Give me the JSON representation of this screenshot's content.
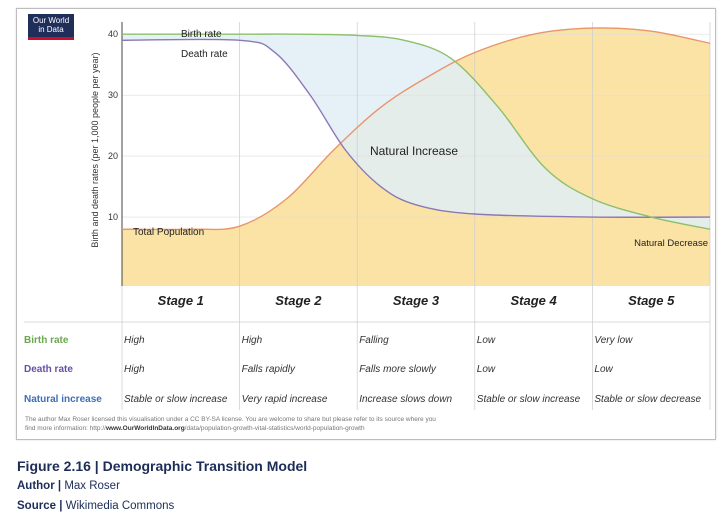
{
  "logo": {
    "line1": "Our World",
    "line2": "in Data"
  },
  "chart_data": {
    "type": "line",
    "ylabel": "Birth and death rates (per 1,000 people per year)",
    "yticks": [
      10,
      20,
      30,
      40
    ],
    "ylim": [
      0,
      42
    ],
    "xlim": [
      0,
      5
    ],
    "stages": [
      "Stage 1",
      "Stage 2",
      "Stage 3",
      "Stage 4",
      "Stage 5"
    ],
    "series": [
      {
        "name": "Birth rate",
        "color": "#8cc06b",
        "points": [
          [
            0,
            40
          ],
          [
            1,
            40
          ],
          [
            1.5,
            40
          ],
          [
            2,
            39.8
          ],
          [
            2.4,
            39
          ],
          [
            2.8,
            36
          ],
          [
            3.2,
            28
          ],
          [
            3.6,
            18
          ],
          [
            4,
            13
          ],
          [
            4.5,
            10
          ],
          [
            5,
            8
          ]
        ]
      },
      {
        "name": "Death rate",
        "color": "#8b78b5",
        "points": [
          [
            0,
            39
          ],
          [
            1,
            39
          ],
          [
            1.3,
            37
          ],
          [
            1.6,
            30
          ],
          [
            1.9,
            21
          ],
          [
            2.2,
            15
          ],
          [
            2.5,
            12
          ],
          [
            3,
            10.5
          ],
          [
            4,
            10
          ],
          [
            5,
            10
          ]
        ]
      },
      {
        "name": "Total Population",
        "color": "#e8956b",
        "points": [
          [
            0,
            8
          ],
          [
            0.6,
            8
          ],
          [
            1,
            8.5
          ],
          [
            1.4,
            13
          ],
          [
            1.8,
            21
          ],
          [
            2.2,
            28
          ],
          [
            2.6,
            33
          ],
          [
            3,
            37
          ],
          [
            3.5,
            40
          ],
          [
            4,
            41
          ],
          [
            4.5,
            40.5
          ],
          [
            5,
            38.5
          ]
        ]
      }
    ],
    "annotations": [
      "Natural Increase",
      "Natural Decrease"
    ],
    "colors": {
      "population_fill": "#fbe3a6",
      "increase_fill": "#e1eef6",
      "grid": "#dddddd"
    }
  },
  "table": {
    "rows": [
      {
        "label": "Birth rate",
        "color": "#6aa84f",
        "cells": [
          "High",
          "High",
          "Falling",
          "Low",
          "Very low"
        ]
      },
      {
        "label": "Death rate",
        "color": "#674ea7",
        "cells": [
          "High",
          "Falls rapidly",
          "Falls more slowly",
          "Low",
          "Low"
        ]
      },
      {
        "label": "Natural increase",
        "color": "#3d6fb5",
        "cells": [
          "Stable or slow increase",
          "Very rapid increase",
          "Increase slows down",
          "Stable or slow increase",
          "Stable or slow decrease"
        ]
      }
    ]
  },
  "license": {
    "text1": "The author Max Roser licensed this visualisation under a CC BY-SA license. You are welcome to share but please refer to its source where you",
    "text2": "find more information: http://",
    "url_bold": "www.OurWorldInData.org",
    "text3": "/data/population-growth-vital-statistics/world-population-growth"
  },
  "caption": {
    "title": "Figure 2.16 | Demographic Transition Model",
    "author_key": "Author",
    "author_sep": "|",
    "author_val": "Max Roser",
    "source_key": "Source",
    "source_sep": "|",
    "source_val": "Wikimedia Commons"
  }
}
